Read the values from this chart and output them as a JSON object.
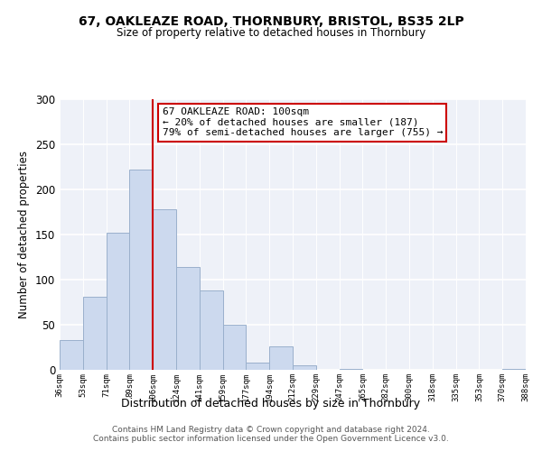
{
  "title1": "67, OAKLEAZE ROAD, THORNBURY, BRISTOL, BS35 2LP",
  "title2": "Size of property relative to detached houses in Thornbury",
  "xlabel": "Distribution of detached houses by size in Thornbury",
  "ylabel": "Number of detached properties",
  "bar_labels": [
    "36sqm",
    "53sqm",
    "71sqm",
    "89sqm",
    "106sqm",
    "124sqm",
    "141sqm",
    "159sqm",
    "177sqm",
    "194sqm",
    "212sqm",
    "229sqm",
    "247sqm",
    "265sqm",
    "282sqm",
    "300sqm",
    "318sqm",
    "335sqm",
    "353sqm",
    "370sqm",
    "388sqm"
  ],
  "bar_values": [
    33,
    81,
    152,
    222,
    178,
    114,
    88,
    50,
    8,
    26,
    5,
    0,
    1,
    0,
    0,
    0,
    0,
    0,
    0,
    1
  ],
  "bar_color": "#ccd9ee",
  "bar_edge_color": "#9ab0cc",
  "vline_color": "#cc0000",
  "annotation_text": "67 OAKLEAZE ROAD: 100sqm\n← 20% of detached houses are smaller (187)\n79% of semi-detached houses are larger (755) →",
  "annotation_box_edge": "#cc0000",
  "ylim": [
    0,
    300
  ],
  "yticks": [
    0,
    50,
    100,
    150,
    200,
    250,
    300
  ],
  "footer1": "Contains HM Land Registry data © Crown copyright and database right 2024.",
  "footer2": "Contains public sector information licensed under the Open Government Licence v3.0.",
  "bg_color": "#ffffff",
  "plot_bg_color": "#eef1f8"
}
